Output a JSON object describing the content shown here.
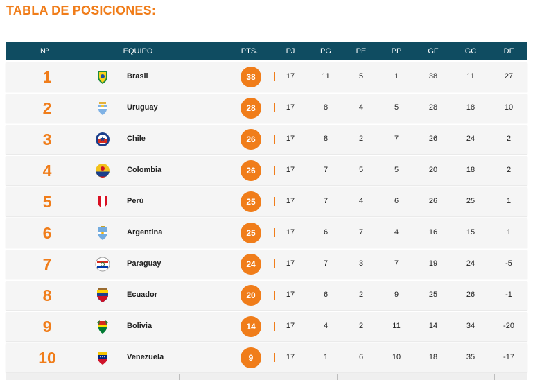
{
  "title": "TABLA DE POSICIONES:",
  "headers": {
    "num": "Nº",
    "team": "EQUIPO",
    "pts": "PTS.",
    "pj": "PJ",
    "pg": "PG",
    "pe": "PE",
    "pp": "PP",
    "gf": "GF",
    "gc": "GC",
    "df": "DF"
  },
  "rows": [
    {
      "pos": "1",
      "team": "Brasil",
      "flag": "brasil-crest-icon",
      "pts": "38",
      "pj": "17",
      "pg": "11",
      "pe": "5",
      "pp": "1",
      "gf": "38",
      "gc": "11",
      "df": "27"
    },
    {
      "pos": "2",
      "team": "Uruguay",
      "flag": "uruguay-crest-icon",
      "pts": "28",
      "pj": "17",
      "pg": "8",
      "pe": "4",
      "pp": "5",
      "gf": "28",
      "gc": "18",
      "df": "10"
    },
    {
      "pos": "3",
      "team": "Chile",
      "flag": "chile-crest-icon",
      "pts": "26",
      "pj": "17",
      "pg": "8",
      "pe": "2",
      "pp": "7",
      "gf": "26",
      "gc": "24",
      "df": "2"
    },
    {
      "pos": "4",
      "team": "Colombia",
      "flag": "colombia-crest-icon",
      "pts": "26",
      "pj": "17",
      "pg": "7",
      "pe": "5",
      "pp": "5",
      "gf": "20",
      "gc": "18",
      "df": "2"
    },
    {
      "pos": "5",
      "team": "Perú",
      "flag": "peru-crest-icon",
      "pts": "25",
      "pj": "17",
      "pg": "7",
      "pe": "4",
      "pp": "6",
      "gf": "26",
      "gc": "25",
      "df": "1"
    },
    {
      "pos": "6",
      "team": "Argentina",
      "flag": "argentina-crest-icon",
      "pts": "25",
      "pj": "17",
      "pg": "6",
      "pe": "7",
      "pp": "4",
      "gf": "16",
      "gc": "15",
      "df": "1"
    },
    {
      "pos": "7",
      "team": "Paraguay",
      "flag": "paraguay-crest-icon",
      "pts": "24",
      "pj": "17",
      "pg": "7",
      "pe": "3",
      "pp": "7",
      "gf": "19",
      "gc": "24",
      "df": "-5"
    },
    {
      "pos": "8",
      "team": "Ecuador",
      "flag": "ecuador-crest-icon",
      "pts": "20",
      "pj": "17",
      "pg": "6",
      "pe": "2",
      "pp": "9",
      "gf": "25",
      "gc": "26",
      "df": "-1"
    },
    {
      "pos": "9",
      "team": "Bolivia",
      "flag": "bolivia-crest-icon",
      "pts": "14",
      "pj": "17",
      "pg": "4",
      "pe": "2",
      "pp": "11",
      "gf": "14",
      "gc": "34",
      "df": "-20"
    },
    {
      "pos": "10",
      "team": "Venezuela",
      "flag": "venezuela-crest-icon",
      "pts": "9",
      "pj": "17",
      "pg": "1",
      "pe": "6",
      "pp": "10",
      "gf": "18",
      "gc": "35",
      "df": "-17"
    }
  ],
  "colors": {
    "accent": "#f07d1a",
    "header_bg": "#0f4c61",
    "row_bg": "#f5f5f5"
  }
}
